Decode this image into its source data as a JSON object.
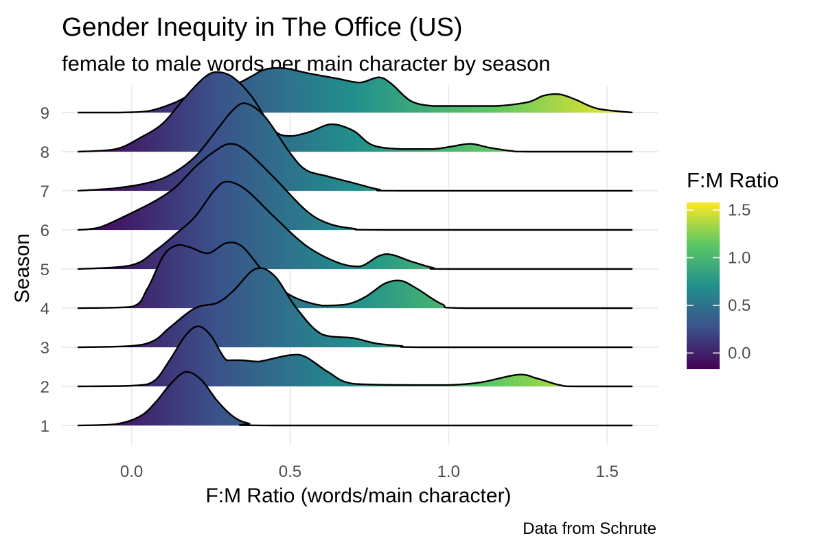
{
  "chart_data": {
    "type": "ridgeline",
    "title": "Gender Inequity in The Office (US)",
    "subtitle": "female to male words per main character by season",
    "xlabel": "F:M Ratio (words/main character)",
    "ylabel": "Season",
    "caption": "Data from Schrute",
    "xlim": [
      -0.22,
      1.66
    ],
    "x_ticks": [
      0.0,
      0.5,
      1.0,
      1.5
    ],
    "x_tick_labels": [
      "0.0",
      "0.5",
      "1.0",
      "1.5"
    ],
    "density_x_range": [
      -0.17,
      1.58
    ],
    "grid": true,
    "colormap": "viridis",
    "colors": [
      "#440154",
      "#3b528b",
      "#21908c",
      "#5dc863",
      "#fde725"
    ],
    "legend": {
      "title": "F:M Ratio",
      "position": "right",
      "range": [
        -0.17,
        1.58
      ],
      "ticks": [
        0.0,
        0.5,
        1.0,
        1.5
      ],
      "tick_labels": [
        "0.0",
        "0.5",
        "1.0",
        "1.5"
      ]
    },
    "categories": [
      "1",
      "2",
      "3",
      "4",
      "5",
      "6",
      "7",
      "8",
      "9"
    ],
    "series": [
      {
        "label": "1",
        "density": [
          [
            -0.17,
            0
          ],
          [
            -0.05,
            0.02
          ],
          [
            0.03,
            0.15
          ],
          [
            0.08,
            0.38
          ],
          [
            0.12,
            0.62
          ],
          [
            0.17,
            0.82
          ],
          [
            0.22,
            0.7
          ],
          [
            0.27,
            0.38
          ],
          [
            0.32,
            0.14
          ],
          [
            0.37,
            0.03
          ],
          [
            0.45,
            0
          ],
          [
            1.58,
            0
          ]
        ]
      },
      {
        "label": "2",
        "density": [
          [
            -0.17,
            0
          ],
          [
            0.0,
            0.01
          ],
          [
            0.07,
            0.08
          ],
          [
            0.12,
            0.4
          ],
          [
            0.17,
            0.78
          ],
          [
            0.21,
            0.92
          ],
          [
            0.25,
            0.78
          ],
          [
            0.3,
            0.4
          ],
          [
            0.35,
            0.4
          ],
          [
            0.4,
            0.38
          ],
          [
            0.5,
            0.48
          ],
          [
            0.55,
            0.45
          ],
          [
            0.62,
            0.22
          ],
          [
            0.7,
            0.04
          ],
          [
            0.9,
            0.02
          ],
          [
            1.0,
            0.02
          ],
          [
            1.1,
            0.06
          ],
          [
            1.22,
            0.18
          ],
          [
            1.28,
            0.12
          ],
          [
            1.35,
            0.02
          ],
          [
            1.4,
            0
          ],
          [
            1.58,
            0
          ]
        ]
      },
      {
        "label": "3",
        "density": [
          [
            -0.17,
            0
          ],
          [
            0.0,
            0.02
          ],
          [
            0.07,
            0.1
          ],
          [
            0.12,
            0.3
          ],
          [
            0.2,
            0.6
          ],
          [
            0.27,
            0.68
          ],
          [
            0.32,
            0.86
          ],
          [
            0.39,
            1.2
          ],
          [
            0.45,
            1.1
          ],
          [
            0.52,
            0.6
          ],
          [
            0.6,
            0.2
          ],
          [
            0.7,
            0.14
          ],
          [
            0.77,
            0.06
          ],
          [
            0.85,
            0.02
          ],
          [
            0.92,
            0
          ],
          [
            1.58,
            0
          ]
        ]
      },
      {
        "label": "4",
        "density": [
          [
            -0.17,
            0
          ],
          [
            0.0,
            0.02
          ],
          [
            0.05,
            0.3
          ],
          [
            0.1,
            0.8
          ],
          [
            0.14,
            0.96
          ],
          [
            0.18,
            0.94
          ],
          [
            0.24,
            0.84
          ],
          [
            0.3,
            1.0
          ],
          [
            0.35,
            0.94
          ],
          [
            0.42,
            0.54
          ],
          [
            0.5,
            0.2
          ],
          [
            0.6,
            0.04
          ],
          [
            0.68,
            0.06
          ],
          [
            0.74,
            0.18
          ],
          [
            0.8,
            0.38
          ],
          [
            0.85,
            0.42
          ],
          [
            0.9,
            0.3
          ],
          [
            0.98,
            0.06
          ],
          [
            1.05,
            0
          ],
          [
            1.58,
            0
          ]
        ]
      },
      {
        "label": "5",
        "density": [
          [
            -0.17,
            0
          ],
          [
            0.0,
            0.06
          ],
          [
            0.08,
            0.3
          ],
          [
            0.14,
            0.54
          ],
          [
            0.2,
            0.8
          ],
          [
            0.26,
            1.2
          ],
          [
            0.3,
            1.34
          ],
          [
            0.36,
            1.22
          ],
          [
            0.45,
            0.8
          ],
          [
            0.55,
            0.36
          ],
          [
            0.65,
            0.1
          ],
          [
            0.72,
            0.04
          ],
          [
            0.78,
            0.2
          ],
          [
            0.82,
            0.22
          ],
          [
            0.88,
            0.12
          ],
          [
            0.95,
            0.02
          ],
          [
            1.0,
            0
          ],
          [
            1.58,
            0
          ]
        ]
      },
      {
        "label": "6",
        "density": [
          [
            -0.17,
            0
          ],
          [
            -0.1,
            0.04
          ],
          [
            0.0,
            0.26
          ],
          [
            0.08,
            0.46
          ],
          [
            0.14,
            0.66
          ],
          [
            0.2,
            0.96
          ],
          [
            0.26,
            1.2
          ],
          [
            0.31,
            1.32
          ],
          [
            0.36,
            1.22
          ],
          [
            0.45,
            0.8
          ],
          [
            0.55,
            0.3
          ],
          [
            0.62,
            0.1
          ],
          [
            0.7,
            0.02
          ],
          [
            0.8,
            0
          ],
          [
            1.58,
            0
          ]
        ]
      },
      {
        "label": "7",
        "density": [
          [
            -0.17,
            0
          ],
          [
            -0.05,
            0.04
          ],
          [
            0.05,
            0.12
          ],
          [
            0.12,
            0.24
          ],
          [
            0.2,
            0.52
          ],
          [
            0.27,
            0.94
          ],
          [
            0.32,
            1.24
          ],
          [
            0.36,
            1.34
          ],
          [
            0.42,
            1.14
          ],
          [
            0.5,
            0.58
          ],
          [
            0.55,
            0.32
          ],
          [
            0.62,
            0.22
          ],
          [
            0.7,
            0.12
          ],
          [
            0.78,
            0.02
          ],
          [
            0.85,
            0
          ],
          [
            1.58,
            0
          ]
        ]
      },
      {
        "label": "8",
        "density": [
          [
            -0.17,
            0
          ],
          [
            -0.05,
            0.04
          ],
          [
            0.03,
            0.22
          ],
          [
            0.1,
            0.44
          ],
          [
            0.17,
            0.84
          ],
          [
            0.23,
            1.14
          ],
          [
            0.27,
            1.22
          ],
          [
            0.32,
            1.14
          ],
          [
            0.38,
            0.84
          ],
          [
            0.45,
            0.32
          ],
          [
            0.5,
            0.24
          ],
          [
            0.56,
            0.3
          ],
          [
            0.63,
            0.42
          ],
          [
            0.7,
            0.32
          ],
          [
            0.76,
            0.1
          ],
          [
            0.85,
            0.04
          ],
          [
            0.95,
            0.04
          ],
          [
            1.01,
            0.08
          ],
          [
            1.07,
            0.12
          ],
          [
            1.13,
            0.06
          ],
          [
            1.2,
            0.01
          ],
          [
            1.25,
            0
          ],
          [
            1.58,
            0
          ]
        ]
      },
      {
        "label": "9",
        "density": [
          [
            -0.17,
            0
          ],
          [
            -0.05,
            0
          ],
          [
            0.05,
            0.02
          ],
          [
            0.14,
            0.16
          ],
          [
            0.21,
            0.34
          ],
          [
            0.27,
            0.4
          ],
          [
            0.33,
            0.44
          ],
          [
            0.38,
            0.56
          ],
          [
            0.42,
            0.66
          ],
          [
            0.48,
            0.68
          ],
          [
            0.56,
            0.6
          ],
          [
            0.65,
            0.52
          ],
          [
            0.72,
            0.46
          ],
          [
            0.78,
            0.54
          ],
          [
            0.82,
            0.44
          ],
          [
            0.88,
            0.18
          ],
          [
            0.95,
            0.1
          ],
          [
            1.05,
            0.1
          ],
          [
            1.15,
            0.1
          ],
          [
            1.25,
            0.16
          ],
          [
            1.3,
            0.26
          ],
          [
            1.35,
            0.28
          ],
          [
            1.4,
            0.2
          ],
          [
            1.47,
            0.06
          ],
          [
            1.58,
            0
          ]
        ]
      }
    ]
  }
}
